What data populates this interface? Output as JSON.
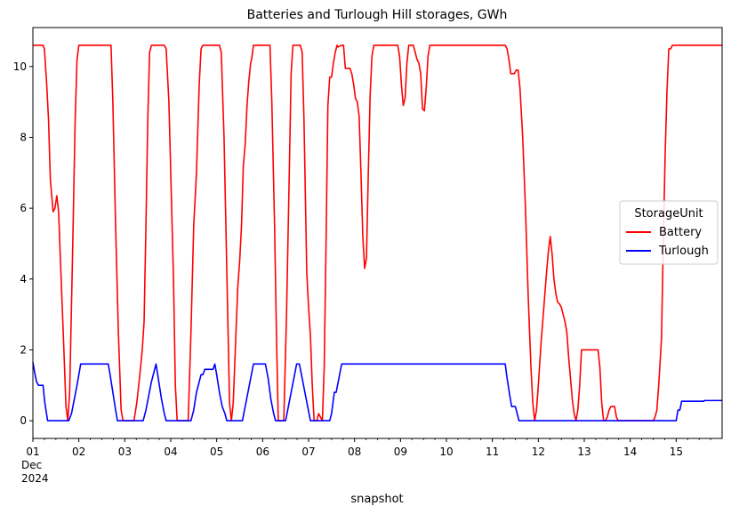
{
  "chart_data": {
    "type": "line",
    "title": "Batteries and Turlough Hill storages, GWh",
    "xlabel": "snapshot",
    "ylabel": "",
    "xlim": [
      0.0,
      15.0
    ],
    "ylim": [
      -0.5,
      11.1
    ],
    "yticks": [
      0,
      2,
      4,
      6,
      8,
      10
    ],
    "xtick_labels": [
      {
        "x": 0,
        "lines": [
          "01",
          "Dec",
          "2024"
        ]
      },
      {
        "x": 1,
        "lines": [
          "02"
        ]
      },
      {
        "x": 2,
        "lines": [
          "03"
        ]
      },
      {
        "x": 3,
        "lines": [
          "04"
        ]
      },
      {
        "x": 4,
        "lines": [
          "05"
        ]
      },
      {
        "x": 5,
        "lines": [
          "06"
        ]
      },
      {
        "x": 6,
        "lines": [
          "07"
        ]
      },
      {
        "x": 7,
        "lines": [
          "08"
        ]
      },
      {
        "x": 8,
        "lines": [
          "09"
        ]
      },
      {
        "x": 9,
        "lines": [
          "10"
        ]
      },
      {
        "x": 10,
        "lines": [
          "11"
        ]
      },
      {
        "x": 11,
        "lines": [
          "12"
        ]
      },
      {
        "x": 12,
        "lines": [
          "13"
        ]
      },
      {
        "x": 13,
        "lines": [
          "14"
        ]
      },
      {
        "x": 14,
        "lines": [
          "15"
        ]
      }
    ],
    "legend": {
      "title": "StorageUnit",
      "position": "center-right"
    },
    "series": [
      {
        "name": "Battery",
        "color": "#ff0000",
        "points": [
          [
            0.0,
            10.6
          ],
          [
            0.22,
            10.6
          ],
          [
            0.25,
            10.5
          ],
          [
            0.3,
            9.5
          ],
          [
            0.34,
            8.5
          ],
          [
            0.38,
            6.8
          ],
          [
            0.44,
            5.9
          ],
          [
            0.48,
            6.0
          ],
          [
            0.52,
            6.35
          ],
          [
            0.56,
            5.9
          ],
          [
            0.6,
            4.5
          ],
          [
            0.66,
            2.5
          ],
          [
            0.72,
            0.4
          ],
          [
            0.76,
            0.0
          ],
          [
            0.8,
            0.8
          ],
          [
            0.86,
            4.5
          ],
          [
            0.92,
            8.5
          ],
          [
            0.96,
            10.2
          ],
          [
            1.0,
            10.6
          ],
          [
            1.7,
            10.6
          ],
          [
            1.74,
            9.0
          ],
          [
            1.8,
            5.5
          ],
          [
            1.86,
            2.5
          ],
          [
            1.92,
            0.3
          ],
          [
            1.96,
            0.0
          ],
          [
            2.2,
            0.0
          ],
          [
            2.26,
            0.5
          ],
          [
            2.32,
            1.2
          ],
          [
            2.38,
            2.0
          ],
          [
            2.42,
            2.8
          ],
          [
            2.46,
            5.5
          ],
          [
            2.5,
            8.5
          ],
          [
            2.54,
            10.4
          ],
          [
            2.58,
            10.6
          ],
          [
            2.86,
            10.6
          ],
          [
            2.9,
            10.5
          ],
          [
            2.96,
            9.0
          ],
          [
            3.0,
            7.0
          ],
          [
            3.06,
            4.0
          ],
          [
            3.1,
            1.0
          ],
          [
            3.14,
            0.0
          ],
          [
            3.38,
            0.0
          ],
          [
            3.44,
            2.5
          ],
          [
            3.5,
            5.5
          ],
          [
            3.56,
            7.0
          ],
          [
            3.62,
            9.5
          ],
          [
            3.66,
            10.5
          ],
          [
            3.7,
            10.6
          ],
          [
            4.06,
            10.6
          ],
          [
            4.1,
            10.4
          ],
          [
            4.16,
            8.0
          ],
          [
            4.2,
            5.5
          ],
          [
            4.24,
            3.0
          ],
          [
            4.28,
            0.5
          ],
          [
            4.32,
            0.0
          ],
          [
            4.36,
            0.5
          ],
          [
            4.42,
            2.5
          ],
          [
            4.46,
            3.8
          ],
          [
            4.5,
            4.5
          ],
          [
            4.54,
            5.5
          ],
          [
            4.58,
            7.2
          ],
          [
            4.62,
            7.8
          ],
          [
            4.66,
            8.9
          ],
          [
            4.7,
            9.6
          ],
          [
            4.74,
            10.1
          ],
          [
            4.76,
            10.2
          ],
          [
            4.8,
            10.6
          ],
          [
            5.16,
            10.6
          ],
          [
            5.2,
            9.0
          ],
          [
            5.26,
            5.5
          ],
          [
            5.3,
            2.5
          ],
          [
            5.34,
            0.0
          ],
          [
            5.46,
            0.0
          ],
          [
            5.52,
            3.0
          ],
          [
            5.58,
            7.0
          ],
          [
            5.62,
            9.8
          ],
          [
            5.66,
            10.6
          ],
          [
            5.82,
            10.6
          ],
          [
            5.86,
            10.4
          ],
          [
            5.9,
            8.5
          ],
          [
            5.96,
            4.2
          ],
          [
            6.0,
            3.2
          ],
          [
            6.04,
            2.4
          ],
          [
            6.08,
            1.0
          ],
          [
            6.12,
            0.0
          ],
          [
            6.18,
            0.0
          ],
          [
            6.22,
            0.2
          ],
          [
            6.26,
            0.1
          ],
          [
            6.3,
            0.0
          ],
          [
            6.34,
            1.5
          ],
          [
            6.38,
            5.0
          ],
          [
            6.42,
            8.9
          ],
          [
            6.46,
            9.7
          ],
          [
            6.5,
            9.7
          ],
          [
            6.54,
            10.1
          ],
          [
            6.58,
            10.4
          ],
          [
            6.62,
            10.6
          ],
          [
            6.64,
            10.55
          ],
          [
            6.72,
            10.6
          ],
          [
            6.76,
            10.6
          ],
          [
            6.8,
            9.95
          ],
          [
            6.9,
            9.95
          ],
          [
            6.94,
            9.8
          ],
          [
            6.98,
            9.5
          ],
          [
            7.02,
            9.1
          ],
          [
            7.06,
            9.0
          ],
          [
            7.1,
            8.6
          ],
          [
            7.14,
            7.0
          ],
          [
            7.18,
            5.2
          ],
          [
            7.22,
            4.3
          ],
          [
            7.26,
            4.6
          ],
          [
            7.3,
            7.0
          ],
          [
            7.34,
            9.2
          ],
          [
            7.38,
            10.3
          ],
          [
            7.42,
            10.6
          ],
          [
            7.94,
            10.6
          ],
          [
            7.98,
            10.3
          ],
          [
            8.02,
            9.5
          ],
          [
            8.06,
            8.9
          ],
          [
            8.1,
            9.1
          ],
          [
            8.14,
            10.1
          ],
          [
            8.18,
            10.6
          ],
          [
            8.28,
            10.6
          ],
          [
            8.32,
            10.4
          ],
          [
            8.36,
            10.2
          ],
          [
            8.4,
            10.1
          ],
          [
            8.44,
            9.8
          ],
          [
            8.48,
            8.8
          ],
          [
            8.52,
            8.75
          ],
          [
            8.56,
            9.4
          ],
          [
            8.6,
            10.3
          ],
          [
            8.64,
            10.6
          ],
          [
            10.28,
            10.6
          ],
          [
            10.32,
            10.5
          ],
          [
            10.36,
            10.2
          ],
          [
            10.4,
            9.8
          ],
          [
            10.48,
            9.8
          ],
          [
            10.52,
            9.9
          ],
          [
            10.56,
            9.9
          ],
          [
            10.6,
            9.4
          ],
          [
            10.66,
            8.0
          ],
          [
            10.72,
            6.0
          ],
          [
            10.78,
            3.5
          ],
          [
            10.84,
            1.5
          ],
          [
            10.88,
            0.5
          ],
          [
            10.92,
            0.0
          ],
          [
            10.96,
            0.3
          ],
          [
            11.0,
            1.0
          ],
          [
            11.06,
            2.2
          ],
          [
            11.12,
            3.2
          ],
          [
            11.18,
            4.2
          ],
          [
            11.22,
            4.8
          ],
          [
            11.26,
            5.2
          ],
          [
            11.3,
            4.7
          ],
          [
            11.34,
            4.0
          ],
          [
            11.38,
            3.6
          ],
          [
            11.42,
            3.35
          ],
          [
            11.46,
            3.3
          ],
          [
            11.5,
            3.2
          ],
          [
            11.54,
            3.0
          ],
          [
            11.58,
            2.8
          ],
          [
            11.62,
            2.5
          ],
          [
            11.66,
            1.8
          ],
          [
            11.7,
            1.2
          ],
          [
            11.74,
            0.6
          ],
          [
            11.78,
            0.2
          ],
          [
            11.82,
            0.0
          ],
          [
            11.86,
            0.3
          ],
          [
            11.9,
            1.0
          ],
          [
            11.94,
            2.0
          ],
          [
            11.98,
            2.0
          ],
          [
            12.3,
            2.0
          ],
          [
            12.34,
            1.5
          ],
          [
            12.38,
            0.5
          ],
          [
            12.42,
            0.0
          ],
          [
            12.46,
            0.0
          ],
          [
            12.5,
            0.1
          ],
          [
            12.54,
            0.3
          ],
          [
            12.58,
            0.4
          ],
          [
            12.66,
            0.4
          ],
          [
            12.7,
            0.1
          ],
          [
            12.74,
            0.0
          ],
          [
            13.5,
            0.0
          ],
          [
            13.54,
            0.1
          ],
          [
            13.58,
            0.3
          ],
          [
            13.62,
            1.0
          ],
          [
            13.68,
            2.3
          ],
          [
            13.72,
            5.0
          ],
          [
            13.76,
            7.5
          ],
          [
            13.8,
            9.3
          ],
          [
            13.84,
            10.5
          ],
          [
            13.88,
            10.5
          ],
          [
            13.92,
            10.6
          ],
          [
            15.0,
            10.6
          ]
        ]
      },
      {
        "name": "Turlough",
        "color": "#0000ff",
        "points": [
          [
            0.0,
            1.65
          ],
          [
            0.04,
            1.35
          ],
          [
            0.08,
            1.1
          ],
          [
            0.12,
            1.0
          ],
          [
            0.22,
            1.0
          ],
          [
            0.26,
            0.5
          ],
          [
            0.32,
            0.0
          ],
          [
            0.78,
            0.0
          ],
          [
            0.84,
            0.2
          ],
          [
            0.9,
            0.6
          ],
          [
            0.96,
            1.0
          ],
          [
            1.0,
            1.3
          ],
          [
            1.04,
            1.6
          ],
          [
            1.64,
            1.6
          ],
          [
            1.68,
            1.3
          ],
          [
            1.74,
            0.8
          ],
          [
            1.8,
            0.3
          ],
          [
            1.84,
            0.0
          ],
          [
            2.4,
            0.0
          ],
          [
            2.46,
            0.3
          ],
          [
            2.52,
            0.7
          ],
          [
            2.58,
            1.1
          ],
          [
            2.64,
            1.4
          ],
          [
            2.68,
            1.6
          ],
          [
            2.74,
            1.1
          ],
          [
            2.8,
            0.6
          ],
          [
            2.86,
            0.2
          ],
          [
            2.9,
            0.0
          ],
          [
            3.44,
            0.0
          ],
          [
            3.5,
            0.3
          ],
          [
            3.56,
            0.8
          ],
          [
            3.62,
            1.1
          ],
          [
            3.66,
            1.3
          ],
          [
            3.7,
            1.3
          ],
          [
            3.74,
            1.45
          ],
          [
            3.92,
            1.45
          ],
          [
            3.96,
            1.6
          ],
          [
            4.0,
            1.3
          ],
          [
            4.06,
            0.8
          ],
          [
            4.12,
            0.4
          ],
          [
            4.18,
            0.2
          ],
          [
            4.22,
            0.0
          ],
          [
            4.56,
            0.0
          ],
          [
            4.62,
            0.4
          ],
          [
            4.68,
            0.8
          ],
          [
            4.74,
            1.2
          ],
          [
            4.8,
            1.6
          ],
          [
            5.06,
            1.6
          ],
          [
            5.12,
            1.2
          ],
          [
            5.18,
            0.6
          ],
          [
            5.24,
            0.2
          ],
          [
            5.28,
            0.0
          ],
          [
            5.5,
            0.0
          ],
          [
            5.56,
            0.4
          ],
          [
            5.62,
            0.8
          ],
          [
            5.68,
            1.2
          ],
          [
            5.74,
            1.6
          ],
          [
            5.8,
            1.6
          ],
          [
            5.86,
            1.2
          ],
          [
            5.92,
            0.8
          ],
          [
            5.98,
            0.4
          ],
          [
            6.04,
            0.0
          ],
          [
            6.46,
            0.0
          ],
          [
            6.5,
            0.2
          ],
          [
            6.56,
            0.8
          ],
          [
            6.6,
            0.8
          ],
          [
            6.66,
            1.2
          ],
          [
            6.72,
            1.6
          ],
          [
            10.28,
            1.6
          ],
          [
            10.32,
            1.2
          ],
          [
            10.38,
            0.7
          ],
          [
            10.42,
            0.4
          ],
          [
            10.5,
            0.4
          ],
          [
            10.54,
            0.2
          ],
          [
            10.58,
            0.0
          ],
          [
            14.0,
            0.0
          ],
          [
            14.04,
            0.3
          ],
          [
            14.08,
            0.3
          ],
          [
            14.12,
            0.55
          ],
          [
            14.6,
            0.55
          ],
          [
            14.62,
            0.57
          ],
          [
            15.0,
            0.57
          ]
        ]
      }
    ]
  }
}
